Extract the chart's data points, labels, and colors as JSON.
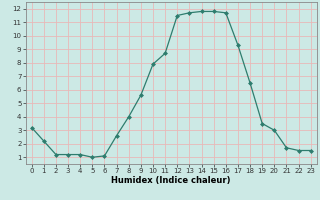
{
  "x": [
    0,
    1,
    2,
    3,
    4,
    5,
    6,
    7,
    8,
    9,
    10,
    11,
    12,
    13,
    14,
    15,
    16,
    17,
    18,
    19,
    20,
    21,
    22,
    23
  ],
  "y": [
    3.2,
    2.2,
    1.2,
    1.2,
    1.2,
    1.0,
    1.1,
    2.6,
    4.0,
    5.6,
    7.9,
    8.7,
    11.5,
    11.7,
    11.8,
    11.8,
    11.7,
    9.3,
    6.5,
    3.5,
    3.0,
    1.7,
    1.5,
    1.5
  ],
  "line_color": "#2e7d6e",
  "marker": "D",
  "marker_size": 2.0,
  "bg_color": "#cce9e5",
  "grid_color": "#e8b8b8",
  "xlabel": "Humidex (Indice chaleur)",
  "xlim": [
    -0.5,
    23.5
  ],
  "ylim": [
    0.5,
    12.5
  ],
  "xticks": [
    0,
    1,
    2,
    3,
    4,
    5,
    6,
    7,
    8,
    9,
    10,
    11,
    12,
    13,
    14,
    15,
    16,
    17,
    18,
    19,
    20,
    21,
    22,
    23
  ],
  "yticks": [
    1,
    2,
    3,
    4,
    5,
    6,
    7,
    8,
    9,
    10,
    11,
    12
  ],
  "xlabel_fontsize": 6.0,
  "tick_fontsize": 5.0
}
